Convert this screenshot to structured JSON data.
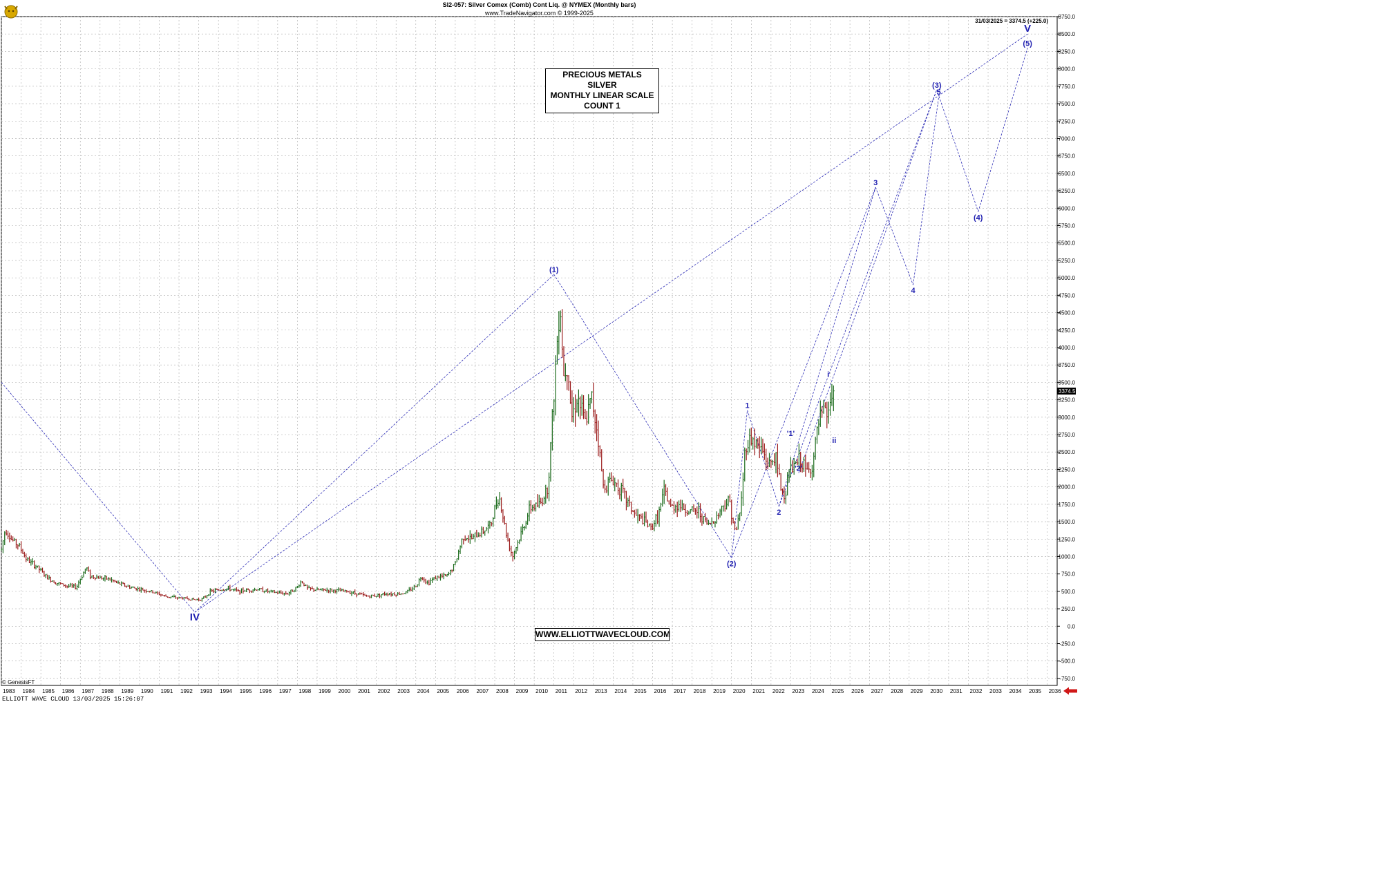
{
  "header": {
    "title": "SI2-057:  Silver Comex (Comb) Cont Liq. @ NYMEX  (Monthly bars)",
    "subtitle": "www.TradeNavigator.com © 1999-2025"
  },
  "last_price_text": "31/03/2025 = 3374.5 (+225.0)",
  "price_tag": "3374.5",
  "watermark": "© GenesisFT",
  "footer": "ELLIOTT WAVE CLOUD    13/03/2025 15:26:07",
  "info_box": [
    "PRECIOUS METALS",
    "SILVER",
    "MONTHLY LINEAR SCALE",
    "COUNT 1"
  ],
  "website": "WWW.ELLIOTTWAVECLOUD.COM",
  "colors": {
    "wave_labels": "#1f1fb0",
    "wave_lines": "#2b2bb5",
    "up_bar": "#1a6a1a",
    "down_bar": "#9a1a1a",
    "grid": "#a8a8a8",
    "arrow": "#d01818"
  },
  "icons": {
    "logo": "gold-bull-logo-icon",
    "arrow": "scroll-left-arrow-icon"
  },
  "chart_data": {
    "type": "line",
    "title": "SI2-057:  Silver Comex (Comb) Cont Liq. @ NYMEX  (Monthly bars)",
    "xlabel": "",
    "ylabel": "",
    "xlim": [
      1983.0,
      2036.5
    ],
    "ylim": [
      -850,
      8750
    ],
    "x_ticks": [
      "1983",
      "1984",
      "1985",
      "1986",
      "1987",
      "1988",
      "1989",
      "1990",
      "1991",
      "1992",
      "1993",
      "1994",
      "1995",
      "1996",
      "1997",
      "1998",
      "1999",
      "2000",
      "2001",
      "2002",
      "2003",
      "2004",
      "2005",
      "2006",
      "2007",
      "2008",
      "2009",
      "2010",
      "2011",
      "2012",
      "2013",
      "2014",
      "2015",
      "2016",
      "2017",
      "2018",
      "2019",
      "2020",
      "2021",
      "2022",
      "2023",
      "2024",
      "2025",
      "2026",
      "2027",
      "2028",
      "2029",
      "2030",
      "2031",
      "2032",
      "2033",
      "2034",
      "2035",
      "2036"
    ],
    "y_ticks": [
      "8750.0",
      "8500.0",
      "8250.0",
      "8000.0",
      "7750.0",
      "7500.0",
      "7250.0",
      "7000.0",
      "6750.0",
      "6500.0",
      "6250.0",
      "6000.0",
      "5750.0",
      "5500.0",
      "5250.0",
      "5000.0",
      "4750.0",
      "4500.0",
      "4250.0",
      "4000.0",
      "3750.0",
      "3500.0",
      "3250.0",
      "3000.0",
      "2750.0",
      "2500.0",
      "2250.0",
      "2000.0",
      "1750.0",
      "1500.0",
      "1250.0",
      "1000.0",
      "750.0",
      "500.0",
      "250.0",
      "0.0",
      "-250.0",
      "-500.0",
      "-750.0"
    ],
    "grid": true,
    "price_series": {
      "name": "",
      "interval": "monthly",
      "points": [
        [
          1983.0,
          1100
        ],
        [
          1983.2,
          1400
        ],
        [
          1983.5,
          1250
        ],
        [
          1983.9,
          1150
        ],
        [
          1984.3,
          950
        ],
        [
          1984.8,
          850
        ],
        [
          1985.3,
          700
        ],
        [
          1985.8,
          620
        ],
        [
          1986.3,
          580
        ],
        [
          1986.8,
          560
        ],
        [
          1987.3,
          850
        ],
        [
          1987.5,
          720
        ],
        [
          1987.9,
          700
        ],
        [
          1988.4,
          680
        ],
        [
          1988.9,
          620
        ],
        [
          1989.5,
          560
        ],
        [
          1990.2,
          520
        ],
        [
          1990.8,
          480
        ],
        [
          1991.3,
          430
        ],
        [
          1991.8,
          410
        ],
        [
          1992.3,
          400
        ],
        [
          1992.8,
          380
        ],
        [
          1993.2,
          390
        ],
        [
          1993.6,
          500
        ],
        [
          1994.0,
          520
        ],
        [
          1994.5,
          540
        ],
        [
          1995.0,
          500
        ],
        [
          1995.5,
          520
        ],
        [
          1996.0,
          530
        ],
        [
          1996.5,
          500
        ],
        [
          1997.0,
          480
        ],
        [
          1997.5,
          470
        ],
        [
          1998.0,
          560
        ],
        [
          1998.2,
          650
        ],
        [
          1998.5,
          540
        ],
        [
          1999.0,
          520
        ],
        [
          1999.5,
          520
        ],
        [
          2000.0,
          510
        ],
        [
          2000.5,
          500
        ],
        [
          2001.0,
          470
        ],
        [
          2001.5,
          430
        ],
        [
          2002.0,
          440
        ],
        [
          2002.5,
          470
        ],
        [
          2003.0,
          460
        ],
        [
          2003.5,
          480
        ],
        [
          2004.0,
          580
        ],
        [
          2004.3,
          720
        ],
        [
          2004.6,
          620
        ],
        [
          2005.0,
          700
        ],
        [
          2005.6,
          720
        ],
        [
          2006.0,
          900
        ],
        [
          2006.4,
          1300
        ],
        [
          2006.8,
          1250
        ],
        [
          2007.3,
          1350
        ],
        [
          2007.8,
          1450
        ],
        [
          2008.2,
          1900
        ],
        [
          2008.6,
          1300
        ],
        [
          2008.9,
          1000
        ],
        [
          2009.3,
          1300
        ],
        [
          2009.8,
          1700
        ],
        [
          2010.3,
          1750
        ],
        [
          2010.7,
          2000
        ],
        [
          2010.9,
          2900
        ],
        [
          2011.1,
          3800
        ],
        [
          2011.3,
          4700
        ],
        [
          2011.5,
          3600
        ],
        [
          2011.7,
          3800
        ],
        [
          2011.9,
          3000
        ],
        [
          2012.2,
          3300
        ],
        [
          2012.6,
          2900
        ],
        [
          2012.9,
          3300
        ],
        [
          2013.2,
          2800
        ],
        [
          2013.5,
          2000
        ],
        [
          2013.9,
          2100
        ],
        [
          2014.3,
          2000
        ],
        [
          2014.7,
          1800
        ],
        [
          2015.1,
          1600
        ],
        [
          2015.6,
          1500
        ],
        [
          2015.9,
          1400
        ],
        [
          2016.3,
          1600
        ],
        [
          2016.6,
          1950
        ],
        [
          2016.9,
          1700
        ],
        [
          2017.3,
          1750
        ],
        [
          2017.8,
          1650
        ],
        [
          2018.3,
          1650
        ],
        [
          2018.8,
          1450
        ],
        [
          2019.2,
          1550
        ],
        [
          2019.6,
          1750
        ],
        [
          2019.9,
          1800
        ],
        [
          2020.2,
          1300
        ],
        [
          2020.5,
          1800
        ],
        [
          2020.7,
          2600
        ],
        [
          2021.0,
          2700
        ],
        [
          2021.3,
          2600
        ],
        [
          2021.6,
          2500
        ],
        [
          2021.9,
          2300
        ],
        [
          2022.2,
          2450
        ],
        [
          2022.5,
          2000
        ],
        [
          2022.7,
          1850
        ],
        [
          2022.9,
          2200
        ],
        [
          2023.2,
          2300
        ],
        [
          2023.5,
          2400
        ],
        [
          2023.8,
          2200
        ],
        [
          2024.1,
          2300
        ],
        [
          2024.4,
          2900
        ],
        [
          2024.7,
          3100
        ],
        [
          2024.9,
          3000
        ],
        [
          2025.0,
          3250
        ],
        [
          2025.2,
          3374.5
        ]
      ]
    },
    "wave_projection": [
      {
        "label": "IV",
        "x": 1992.8,
        "y": 200
      },
      {
        "label": "(1)",
        "x": 2011.0,
        "y": 5050
      },
      {
        "label": "(2)",
        "x": 2020.0,
        "y": 980
      },
      {
        "label": "1",
        "x": 2020.8,
        "y": 3100
      },
      {
        "label": "2",
        "x": 2022.4,
        "y": 1720
      },
      {
        "label": "'1'",
        "x": 2023.0,
        "y": 2700
      },
      {
        "label": "'2'",
        "x": 2023.4,
        "y": 2200
      },
      {
        "label": "i",
        "x": 2024.9,
        "y": 3550
      },
      {
        "label": "ii",
        "x": 2025.2,
        "y": 2750
      },
      {
        "label": "3",
        "x": 2027.3,
        "y": 6300
      },
      {
        "label": "4",
        "x": 2029.2,
        "y": 4900
      },
      {
        "label": "5",
        "x": 2030.5,
        "y": 7600
      },
      {
        "label": "(3)",
        "x": 2030.4,
        "y": 7700
      },
      {
        "label": "(4)",
        "x": 2032.5,
        "y": 5950
      },
      {
        "label": "(5)",
        "x": 2035.0,
        "y": 8300
      },
      {
        "label": "V",
        "x": 2035.0,
        "y": 8500
      }
    ]
  }
}
